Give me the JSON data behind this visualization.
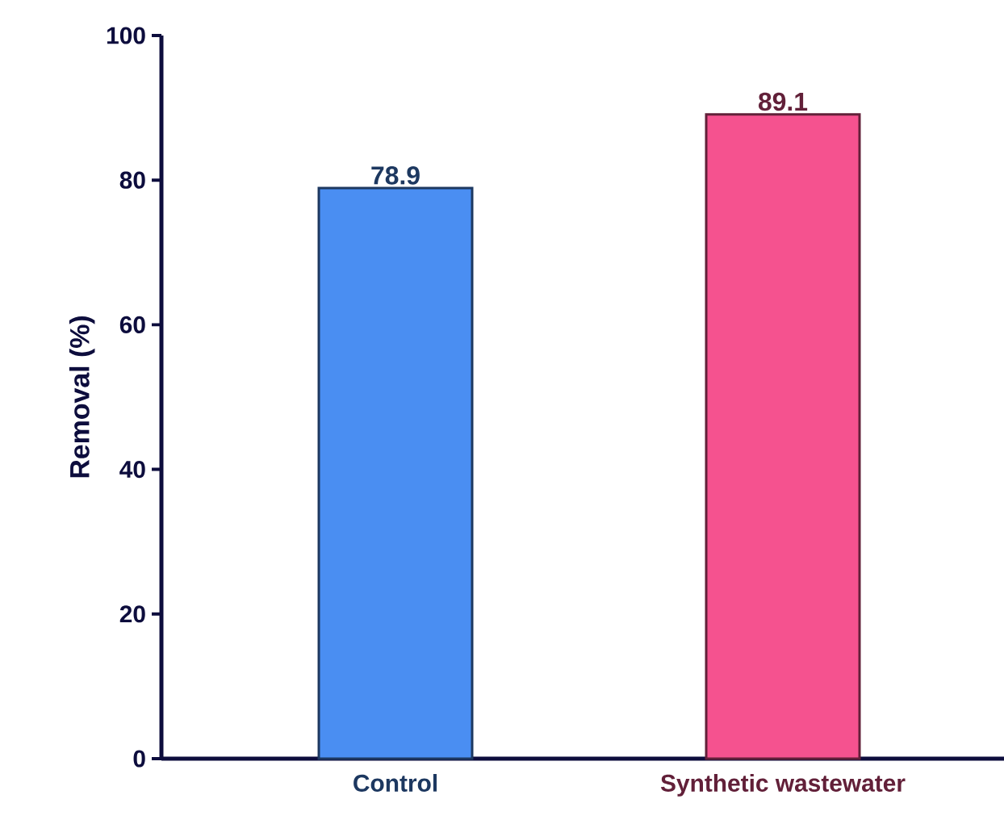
{
  "chart_data": {
    "type": "bar",
    "ylabel": "Removal (%)",
    "categories": [
      "Control",
      "Synthetic wastewater"
    ],
    "values": [
      78.9,
      89.1
    ],
    "value_labels": [
      "78.9",
      "89.1"
    ],
    "colors": [
      "#4a8ef2",
      "#f5528f"
    ],
    "ylim": [
      0,
      100
    ],
    "yticks": [
      0,
      20,
      40,
      60,
      80,
      100
    ],
    "grid": false
  }
}
